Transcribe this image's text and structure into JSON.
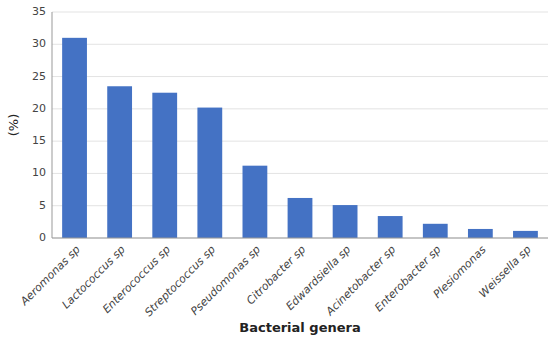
{
  "chart_data": {
    "type": "bar",
    "categories": [
      "Aeromonas sp",
      "Lactococcus sp",
      "Enterococcus sp",
      "Streptococcus sp",
      "Pseudomonas sp",
      "Citrobacter sp",
      "Edwardsiella sp",
      "Acinetobacter sp",
      "Enterobacter sp",
      "Plesiomonas",
      "Weissella sp"
    ],
    "values": [
      31.0,
      23.5,
      22.5,
      20.2,
      11.2,
      6.2,
      5.1,
      3.4,
      2.2,
      1.4,
      1.1
    ],
    "color": "#4472C4",
    "xlabel": "Bacterial genera",
    "ylabel": "(%)",
    "ylim": [
      0,
      35
    ],
    "yticks": [
      0,
      5,
      10,
      15,
      20,
      25,
      30,
      35
    ],
    "grid": true
  }
}
